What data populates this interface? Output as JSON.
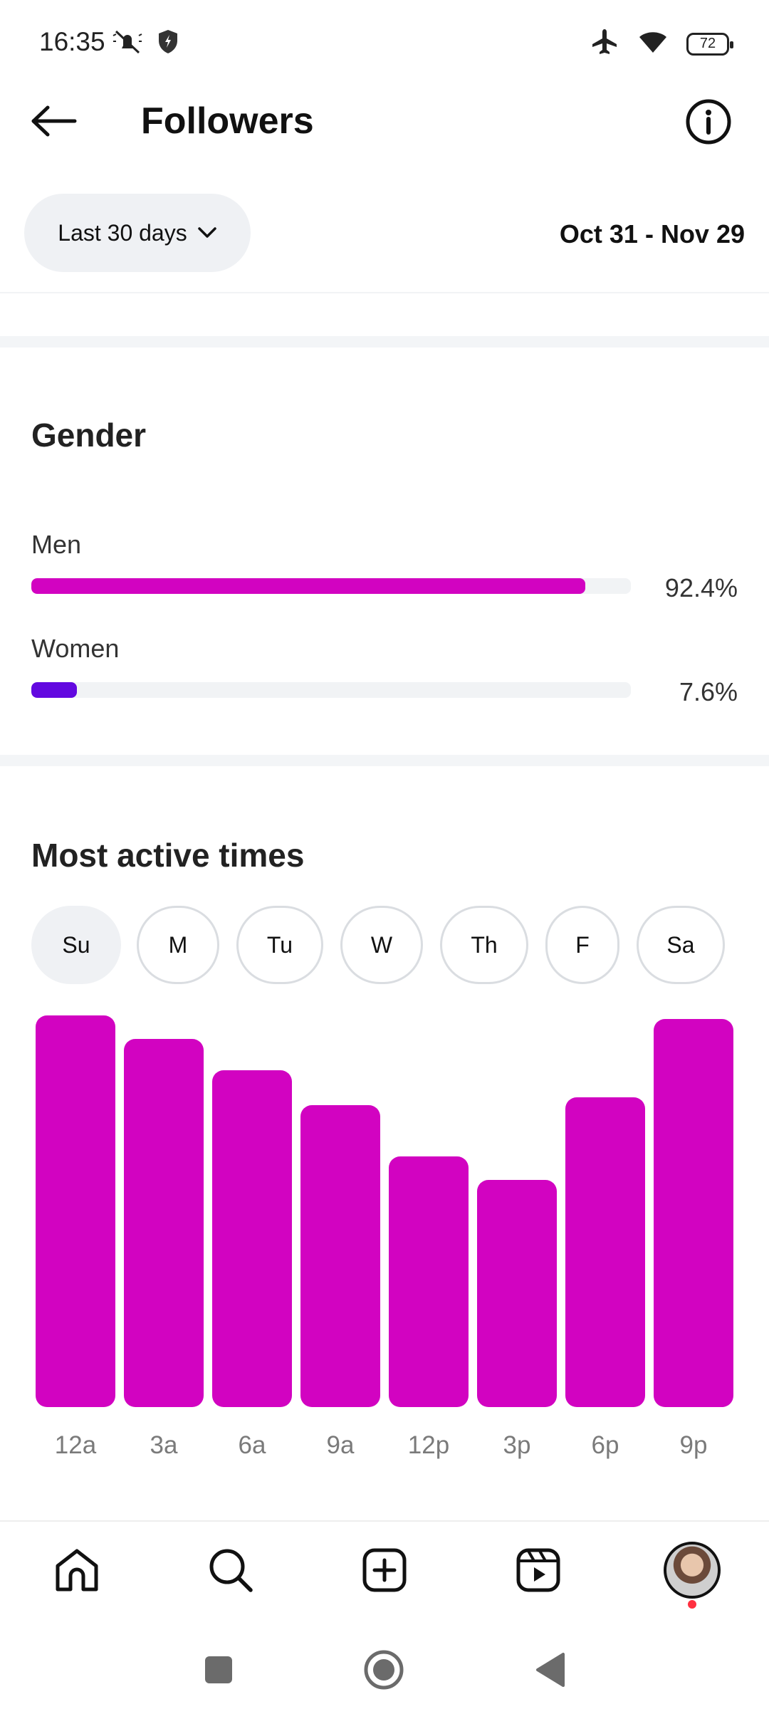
{
  "status_bar": {
    "time": "16:35",
    "battery": "72",
    "icons": [
      "mute-icon",
      "shield-icon",
      "airplane-icon",
      "wifi-icon",
      "battery-icon"
    ]
  },
  "header": {
    "title": "Followers",
    "back_icon": "arrow-left-icon",
    "info_icon": "info-icon"
  },
  "filter": {
    "range_label": "Last 30 days",
    "date_range": "Oct 31 - Nov 29"
  },
  "gender": {
    "title": "Gender",
    "items": [
      {
        "label": "Men",
        "value": "92.4%",
        "fraction": 0.924,
        "color": "#d203c1"
      },
      {
        "label": "Women",
        "value": "7.6%",
        "fraction": 0.076,
        "color": "#6208e0"
      }
    ]
  },
  "active_times": {
    "title": "Most active times",
    "days": [
      "Su",
      "M",
      "Tu",
      "W",
      "Th",
      "F",
      "Sa"
    ],
    "selected_day": "Su"
  },
  "chart_data": {
    "type": "bar",
    "categories": [
      "12a",
      "3a",
      "6a",
      "9a",
      "12p",
      "3p",
      "6p",
      "9p"
    ],
    "values": [
      100,
      94,
      86,
      77,
      64,
      58,
      79,
      99
    ],
    "ylim": [
      0,
      100
    ],
    "color": "#d203c1",
    "grid": false
  },
  "bottom_nav": {
    "items": [
      "home-icon",
      "search-icon",
      "create-icon",
      "reels-icon",
      "profile-avatar"
    ]
  },
  "system_nav": {
    "items": [
      "recents-button",
      "home-button",
      "back-button"
    ]
  }
}
